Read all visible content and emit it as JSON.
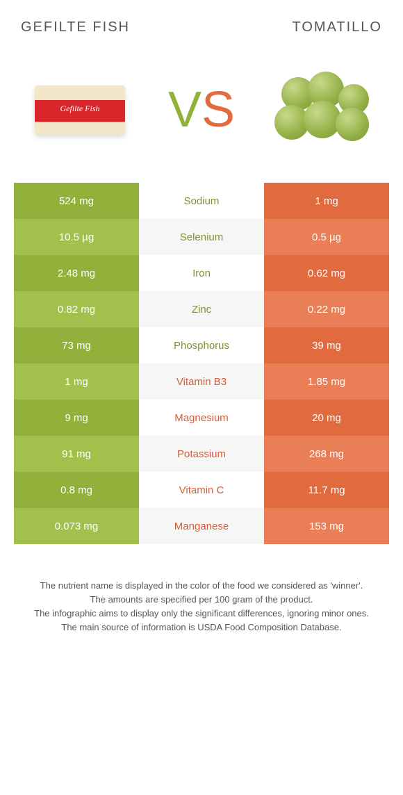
{
  "header": {
    "left_title": "Gefilte fish",
    "right_title": "Tomatillo"
  },
  "vs": {
    "v": "V",
    "s": "S"
  },
  "colors": {
    "green_dark": "#91b13a",
    "green_light": "#a2c04c",
    "orange_dark": "#e26a3f",
    "orange_light": "#e97e57",
    "mid_light": "#f6f6f6",
    "text_green": "#7a9632",
    "text_orange": "#d55e37"
  },
  "rows": [
    {
      "left": "524 mg",
      "label": "Sodium",
      "right": "1 mg",
      "winner": "left"
    },
    {
      "left": "10.5 µg",
      "label": "Selenium",
      "right": "0.5 µg",
      "winner": "left"
    },
    {
      "left": "2.48 mg",
      "label": "Iron",
      "right": "0.62 mg",
      "winner": "left"
    },
    {
      "left": "0.82 mg",
      "label": "Zinc",
      "right": "0.22 mg",
      "winner": "left"
    },
    {
      "left": "73 mg",
      "label": "Phosphorus",
      "right": "39 mg",
      "winner": "left"
    },
    {
      "left": "1 mg",
      "label": "Vitamin B3",
      "right": "1.85 mg",
      "winner": "right"
    },
    {
      "left": "9 mg",
      "label": "Magnesium",
      "right": "20 mg",
      "winner": "right"
    },
    {
      "left": "91 mg",
      "label": "Potassium",
      "right": "268 mg",
      "winner": "right"
    },
    {
      "left": "0.8 mg",
      "label": "Vitamin C",
      "right": "11.7 mg",
      "winner": "right"
    },
    {
      "left": "0.073 mg",
      "label": "Manganese",
      "right": "153 mg",
      "winner": "right"
    }
  ],
  "footer": {
    "line1": "The nutrient name is displayed in the color of the food we considered as 'winner'.",
    "line2": "The amounts are specified per 100 gram of the product.",
    "line3": "The infographic aims to display only the significant differences, ignoring minor ones.",
    "line4": "The main source of information is USDA Food Composition Database."
  }
}
